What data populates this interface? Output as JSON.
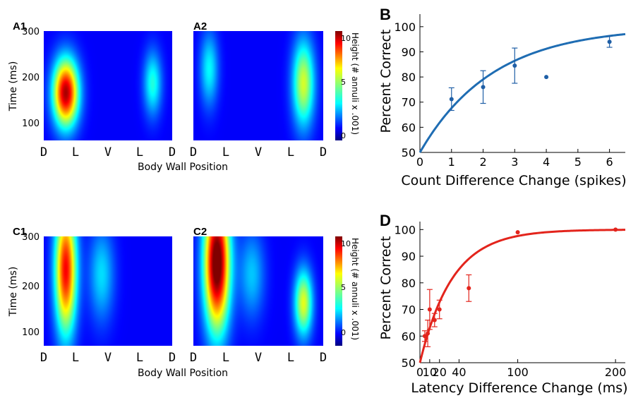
{
  "chart_data": [
    {
      "id": "A1",
      "panel_label": "A1",
      "type": "heatmap",
      "ylabel": "Time (ms)",
      "yticks": [
        "100",
        "200",
        "300"
      ],
      "ylim": [
        70,
        300
      ],
      "xticks": [
        "D",
        "L",
        "V",
        "L",
        "D"
      ],
      "xlabel": "Body Wall Position",
      "blobs": [
        {
          "x": 0.17,
          "y": 170,
          "sx": 0.07,
          "sy": 50,
          "amp": 10.5
        },
        {
          "x": 0.85,
          "y": 190,
          "sx": 0.05,
          "sy": 48,
          "amp": 3.6
        }
      ]
    },
    {
      "id": "A2",
      "panel_label": "A2",
      "type": "heatmap",
      "yticks": [
        "",
        "",
        ""
      ],
      "ylim": [
        70,
        300
      ],
      "xticks": [
        "D",
        "L",
        "V",
        "L",
        "D"
      ],
      "blobs": [
        {
          "x": 0.12,
          "y": 220,
          "sx": 0.05,
          "sy": 55,
          "amp": 3.2
        },
        {
          "x": 0.85,
          "y": 190,
          "sx": 0.06,
          "sy": 65,
          "amp": 5.8
        }
      ],
      "colorbar": {
        "label": "Height (# annuli x .001)",
        "ticks": [
          "10",
          "5",
          "0"
        ],
        "range": [
          -1.5,
          11
        ]
      }
    },
    {
      "id": "B",
      "panel_label": "B",
      "type": "scatter",
      "ylabel": "Percent Correct",
      "xlabel": "Count Difference Change (spikes)",
      "xlim": [
        0,
        6.5
      ],
      "ylim": [
        50,
        105
      ],
      "xticks": [
        "0",
        "1",
        "2",
        "3",
        "4",
        "5",
        "6"
      ],
      "yticks": [
        "50",
        "60",
        "70",
        "80",
        "90",
        "100"
      ],
      "series": [
        {
          "x": [
            1,
            2,
            3,
            4,
            6
          ],
          "y": [
            71.2,
            76.0,
            84.5,
            80.0,
            94.0
          ],
          "err": [
            4.5,
            6.5,
            7.0,
            0,
            2.2
          ],
          "color": "#1f5fa6"
        }
      ],
      "fit": {
        "type": "saturating",
        "from": 50,
        "to": 100,
        "tau": 2.3,
        "color": "#1f6db3"
      }
    },
    {
      "id": "C1",
      "panel_label": "C1",
      "type": "heatmap",
      "ylabel": "Time (ms)",
      "yticks": [
        "100",
        "200",
        "300"
      ],
      "ylim": [
        70,
        300
      ],
      "xticks": [
        "D",
        "L",
        "V",
        "L",
        "D"
      ],
      "xlabel": "Body Wall Position",
      "blobs": [
        {
          "x": 0.17,
          "y": 230,
          "sx": 0.06,
          "sy": 95,
          "amp": 9.5
        },
        {
          "x": 0.45,
          "y": 220,
          "sx": 0.07,
          "sy": 70,
          "amp": 2.8
        }
      ]
    },
    {
      "id": "C2",
      "panel_label": "C2",
      "type": "heatmap",
      "yticks": [
        "",
        "",
        ""
      ],
      "ylim": [
        70,
        300
      ],
      "xticks": [
        "D",
        "L",
        "V",
        "L",
        "D"
      ],
      "blobs": [
        {
          "x": 0.18,
          "y": 245,
          "sx": 0.07,
          "sy": 100,
          "amp": 12
        },
        {
          "x": 0.85,
          "y": 160,
          "sx": 0.05,
          "sy": 50,
          "amp": 6.0
        },
        {
          "x": 0.45,
          "y": 220,
          "sx": 0.07,
          "sy": 65,
          "amp": 2.5
        }
      ],
      "colorbar": {
        "label": "Height (# annuli x .001)",
        "ticks": [
          "10",
          "5",
          "0"
        ],
        "range": [
          -1.5,
          11
        ]
      }
    },
    {
      "id": "D",
      "panel_label": "D",
      "type": "scatter",
      "ylabel": "Percent Correct",
      "xlabel": "Latency Difference Change (ms)",
      "xlim": [
        0,
        210
      ],
      "ylim": [
        50,
        103
      ],
      "xticks": [
        0,
        10,
        20,
        40,
        100,
        200
      ],
      "yticks": [
        "50",
        "60",
        "70",
        "80",
        "90",
        "100"
      ],
      "series": [
        {
          "x": [
            5,
            8,
            10,
            15,
            20,
            50,
            100,
            200
          ],
          "y": [
            60.0,
            61.0,
            70.0,
            66.0,
            70.0,
            78.0,
            99.0,
            100.0
          ],
          "err": [
            2,
            5,
            7.5,
            2.5,
            3.5,
            5,
            0,
            0
          ],
          "color": "#e3241c"
        }
      ],
      "fit": {
        "type": "saturating",
        "from": 50,
        "to": 100,
        "tau": 33,
        "color": "#e3241c"
      }
    }
  ]
}
